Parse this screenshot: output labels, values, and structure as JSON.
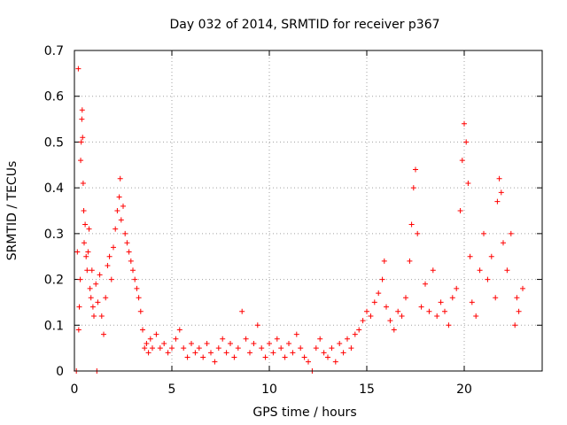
{
  "chart_data": {
    "type": "scatter",
    "title": "Day 032 of 2014, SRMTID for receiver p367",
    "xlabel": "GPS time / hours",
    "ylabel": "SRMTID / TECUs",
    "xlim": [
      0,
      24
    ],
    "ylim": [
      0,
      0.7
    ],
    "x_ticks": [
      0,
      5,
      10,
      15,
      20
    ],
    "x_tick_labels": [
      "0",
      "5",
      "10",
      "15",
      "20"
    ],
    "y_ticks": [
      0,
      0.1,
      0.2,
      0.3,
      0.4,
      0.5,
      0.6,
      0.7
    ],
    "y_tick_labels": [
      "0",
      "0.1",
      "0.2",
      "0.3",
      "0.4",
      "0.5",
      "0.6",
      "0.7"
    ],
    "grid": true,
    "marker": "+",
    "color": "#ff0000",
    "series": [
      {
        "name": "SRMTID",
        "points": [
          [
            0.1,
            0.0
          ],
          [
            0.15,
            0.26
          ],
          [
            0.2,
            0.66
          ],
          [
            0.22,
            0.09
          ],
          [
            0.25,
            0.14
          ],
          [
            0.3,
            0.2
          ],
          [
            0.32,
            0.46
          ],
          [
            0.35,
            0.5
          ],
          [
            0.38,
            0.55
          ],
          [
            0.4,
            0.57
          ],
          [
            0.42,
            0.51
          ],
          [
            0.45,
            0.41
          ],
          [
            0.48,
            0.35
          ],
          [
            0.5,
            0.28
          ],
          [
            0.55,
            0.32
          ],
          [
            0.6,
            0.25
          ],
          [
            0.65,
            0.22
          ],
          [
            0.7,
            0.26
          ],
          [
            0.75,
            0.31
          ],
          [
            0.8,
            0.18
          ],
          [
            0.85,
            0.16
          ],
          [
            0.9,
            0.22
          ],
          [
            0.95,
            0.14
          ],
          [
            1.0,
            0.12
          ],
          [
            1.1,
            0.19
          ],
          [
            1.15,
            0.0
          ],
          [
            1.2,
            0.15
          ],
          [
            1.3,
            0.21
          ],
          [
            1.4,
            0.12
          ],
          [
            1.5,
            0.08
          ],
          [
            1.6,
            0.16
          ],
          [
            1.7,
            0.23
          ],
          [
            1.8,
            0.25
          ],
          [
            1.9,
            0.2
          ],
          [
            2.0,
            0.27
          ],
          [
            2.1,
            0.31
          ],
          [
            2.2,
            0.35
          ],
          [
            2.3,
            0.38
          ],
          [
            2.35,
            0.42
          ],
          [
            2.4,
            0.33
          ],
          [
            2.5,
            0.36
          ],
          [
            2.6,
            0.3
          ],
          [
            2.7,
            0.28
          ],
          [
            2.8,
            0.26
          ],
          [
            2.9,
            0.24
          ],
          [
            3.0,
            0.22
          ],
          [
            3.1,
            0.2
          ],
          [
            3.2,
            0.18
          ],
          [
            3.3,
            0.16
          ],
          [
            3.4,
            0.13
          ],
          [
            3.5,
            0.09
          ],
          [
            3.6,
            0.05
          ],
          [
            3.7,
            0.06
          ],
          [
            3.8,
            0.04
          ],
          [
            3.9,
            0.07
          ],
          [
            4.0,
            0.05
          ],
          [
            4.2,
            0.08
          ],
          [
            4.4,
            0.05
          ],
          [
            4.6,
            0.06
          ],
          [
            4.8,
            0.04
          ],
          [
            5.0,
            0.05
          ],
          [
            5.2,
            0.07
          ],
          [
            5.4,
            0.09
          ],
          [
            5.6,
            0.05
          ],
          [
            5.8,
            0.03
          ],
          [
            6.0,
            0.06
          ],
          [
            6.2,
            0.04
          ],
          [
            6.4,
            0.05
          ],
          [
            6.6,
            0.03
          ],
          [
            6.8,
            0.06
          ],
          [
            7.0,
            0.04
          ],
          [
            7.2,
            0.02
          ],
          [
            7.4,
            0.05
          ],
          [
            7.6,
            0.07
          ],
          [
            7.8,
            0.04
          ],
          [
            8.0,
            0.06
          ],
          [
            8.2,
            0.03
          ],
          [
            8.4,
            0.05
          ],
          [
            8.6,
            0.13
          ],
          [
            8.8,
            0.07
          ],
          [
            9.0,
            0.04
          ],
          [
            9.2,
            0.06
          ],
          [
            9.4,
            0.1
          ],
          [
            9.6,
            0.05
          ],
          [
            9.8,
            0.03
          ],
          [
            10.0,
            0.06
          ],
          [
            10.2,
            0.04
          ],
          [
            10.4,
            0.07
          ],
          [
            10.6,
            0.05
          ],
          [
            10.8,
            0.03
          ],
          [
            11.0,
            0.06
          ],
          [
            11.2,
            0.04
          ],
          [
            11.4,
            0.08
          ],
          [
            11.6,
            0.05
          ],
          [
            11.8,
            0.03
          ],
          [
            12.0,
            0.02
          ],
          [
            12.2,
            0.0
          ],
          [
            12.4,
            0.05
          ],
          [
            12.6,
            0.07
          ],
          [
            12.8,
            0.04
          ],
          [
            13.0,
            0.03
          ],
          [
            13.2,
            0.05
          ],
          [
            13.4,
            0.02
          ],
          [
            13.6,
            0.06
          ],
          [
            13.8,
            0.04
          ],
          [
            14.0,
            0.07
          ],
          [
            14.2,
            0.05
          ],
          [
            14.4,
            0.08
          ],
          [
            14.6,
            0.09
          ],
          [
            14.8,
            0.11
          ],
          [
            15.0,
            0.13
          ],
          [
            15.2,
            0.12
          ],
          [
            15.4,
            0.15
          ],
          [
            15.6,
            0.17
          ],
          [
            15.8,
            0.2
          ],
          [
            15.9,
            0.24
          ],
          [
            16.0,
            0.14
          ],
          [
            16.2,
            0.11
          ],
          [
            16.4,
            0.09
          ],
          [
            16.6,
            0.13
          ],
          [
            16.8,
            0.12
          ],
          [
            17.0,
            0.16
          ],
          [
            17.2,
            0.24
          ],
          [
            17.3,
            0.32
          ],
          [
            17.4,
            0.4
          ],
          [
            17.5,
            0.44
          ],
          [
            17.6,
            0.3
          ],
          [
            17.8,
            0.14
          ],
          [
            18.0,
            0.19
          ],
          [
            18.2,
            0.13
          ],
          [
            18.4,
            0.22
          ],
          [
            18.6,
            0.12
          ],
          [
            18.8,
            0.15
          ],
          [
            19.0,
            0.13
          ],
          [
            19.2,
            0.1
          ],
          [
            19.4,
            0.16
          ],
          [
            19.6,
            0.18
          ],
          [
            19.8,
            0.35
          ],
          [
            19.9,
            0.46
          ],
          [
            20.0,
            0.54
          ],
          [
            20.1,
            0.5
          ],
          [
            20.2,
            0.41
          ],
          [
            20.3,
            0.25
          ],
          [
            20.4,
            0.15
          ],
          [
            20.6,
            0.12
          ],
          [
            20.8,
            0.22
          ],
          [
            21.0,
            0.3
          ],
          [
            21.2,
            0.2
          ],
          [
            21.4,
            0.25
          ],
          [
            21.6,
            0.16
          ],
          [
            21.7,
            0.37
          ],
          [
            21.8,
            0.42
          ],
          [
            21.9,
            0.39
          ],
          [
            22.0,
            0.28
          ],
          [
            22.2,
            0.22
          ],
          [
            22.4,
            0.3
          ],
          [
            22.6,
            0.1
          ],
          [
            22.7,
            0.16
          ],
          [
            22.8,
            0.13
          ],
          [
            23.0,
            0.18
          ]
        ]
      }
    ]
  }
}
